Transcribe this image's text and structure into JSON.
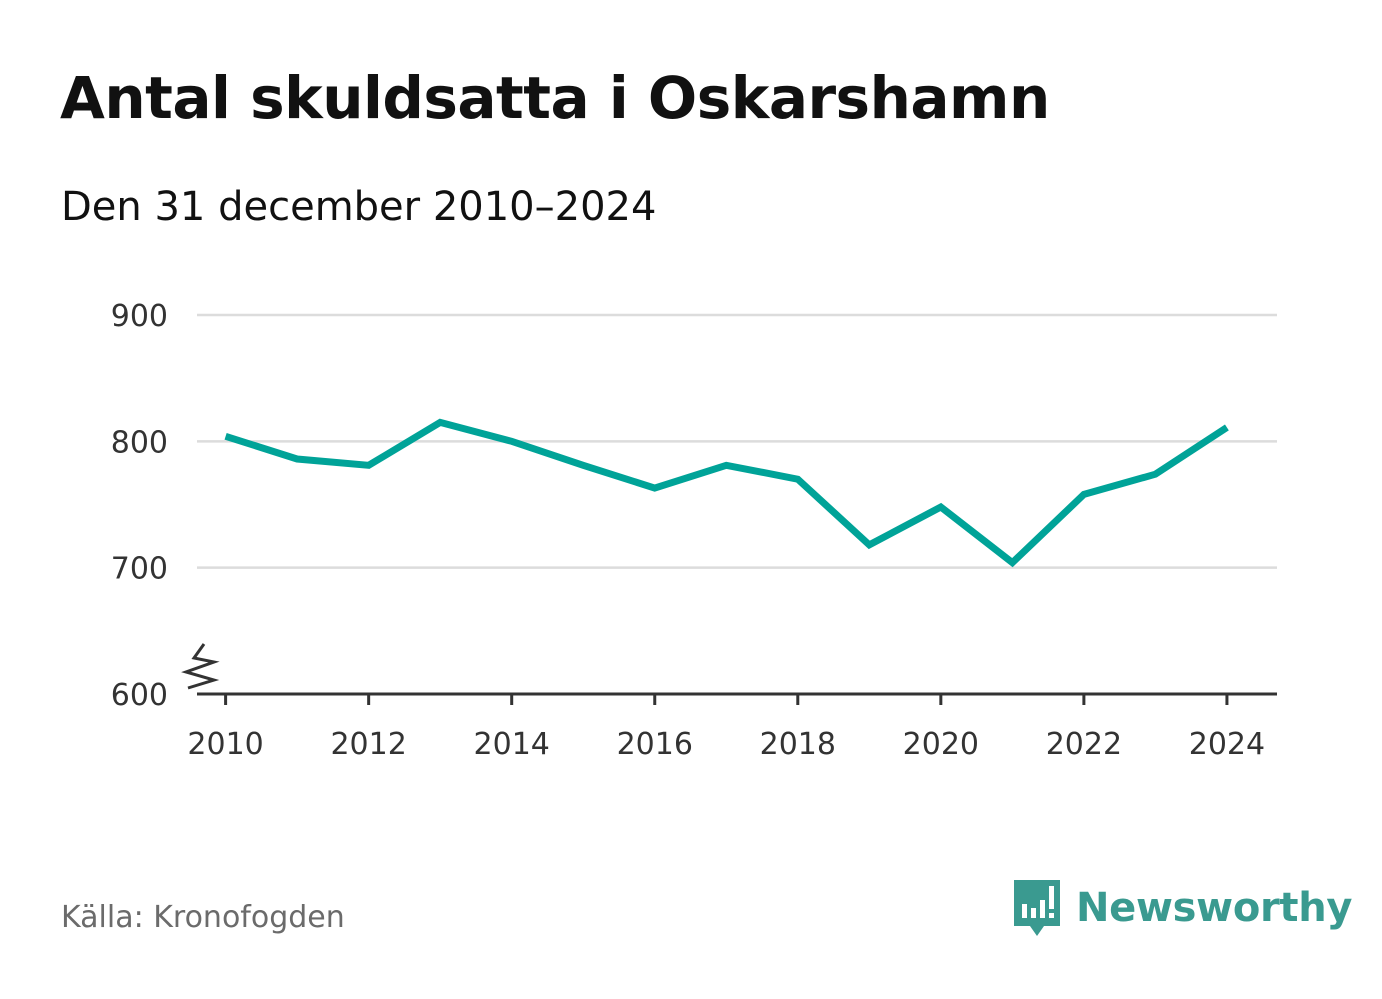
{
  "title": "Antal skuldsatta i Oskarshamn",
  "subtitle": "Den 31 december 2010–2024",
  "source": "Källa: Kronofogden",
  "brand": {
    "name": "Newsworthy",
    "icon": "newsworthy-logo-icon",
    "color": "#3a9a90"
  },
  "chart_data": {
    "type": "line",
    "title": "Antal skuldsatta i Oskarshamn",
    "subtitle": "Den 31 december 2010–2024",
    "xlabel": "",
    "ylabel": "",
    "x": [
      2010,
      2011,
      2012,
      2013,
      2014,
      2015,
      2016,
      2017,
      2018,
      2019,
      2020,
      2021,
      2022,
      2023,
      2024
    ],
    "series": [
      {
        "color": "#00a398",
        "values": [
          804,
          786,
          781,
          815,
          800,
          781,
          763,
          781,
          770,
          718,
          748,
          704,
          758,
          774,
          811
        ]
      }
    ],
    "x_ticks": [
      "2010",
      "2012",
      "2014",
      "2016",
      "2018",
      "2020",
      "2022",
      "2024"
    ],
    "y_ticks": [
      "600",
      "700",
      "800",
      "900"
    ],
    "ylim": [
      600,
      900
    ],
    "xlim": [
      2009.6,
      2024.7
    ],
    "y_axis_break": true,
    "grid": "horizontal",
    "legend": "none"
  }
}
